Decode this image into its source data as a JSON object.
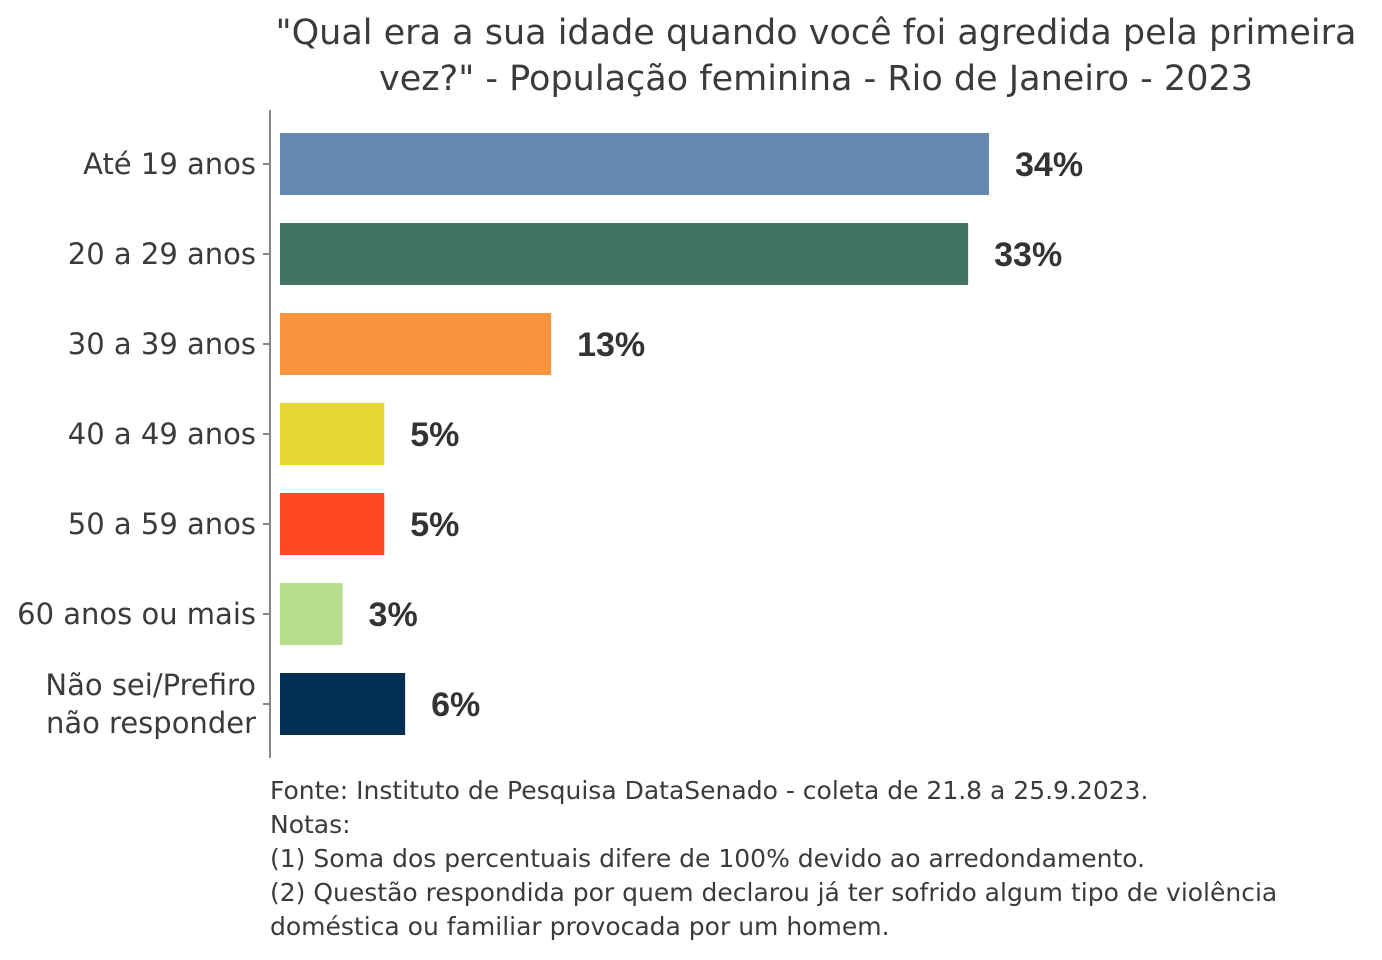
{
  "chart_data": {
    "type": "bar",
    "orientation": "horizontal",
    "title_lines": [
      "\"Qual era a sua idade quando você foi agredida pela primeira",
      "vez?\" - População feminina - Rio de Janeiro - 2023"
    ],
    "categories": [
      [
        "Até 19 anos"
      ],
      [
        "20 a 29 anos"
      ],
      [
        "30 a 39 anos"
      ],
      [
        "40 a 49 anos"
      ],
      [
        "50 a 59 anos"
      ],
      [
        "60 anos ou mais"
      ],
      [
        "Não sei/Prefiro",
        "não responder"
      ]
    ],
    "values": [
      34,
      33,
      13,
      5,
      5,
      3,
      6
    ],
    "value_labels": [
      "34%",
      "33%",
      "13%",
      "5%",
      "5%",
      "3%",
      "6%"
    ],
    "colors": [
      "#6689b0",
      "#437364",
      "#fa943e",
      "#e5d835",
      "#ff4a22",
      "#b9dd8f",
      "#032f53"
    ],
    "xlim": [
      0,
      36
    ],
    "xlabel": "",
    "ylabel": "",
    "grid": false
  },
  "footnote": {
    "lines": [
      "Fonte: Instituto de Pesquisa DataSenado - coleta de 21.8 a 25.9.2023.",
      "Notas:",
      "(1) Soma dos percentuais difere de 100% devido ao arredondamento.",
      "(2) Questão respondida por quem declarou já ter sofrido algum tipo de violência",
      "doméstica ou familiar provocada por um homem."
    ]
  }
}
